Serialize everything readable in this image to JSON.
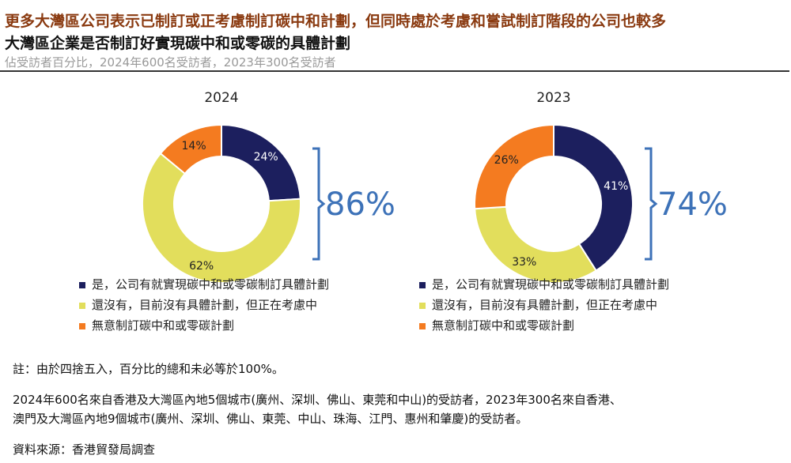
{
  "header": {
    "title": "更多大灣區公司表示已制訂或正考慮制訂碳中和計劃，但同時處於考慮和嘗試制訂階段的公司也較多",
    "subtitle": "大灣區企業是否制訂好實現碳中和或零碳的具體計劃",
    "note": "佔受訪者百分比，2024年600名受訪者，2023年300名受訪者"
  },
  "colors": {
    "yes": "#1c1f5e",
    "considering": "#e2de5c",
    "no": "#f47b20",
    "bracket": "#3d72b8"
  },
  "chart_data": [
    {
      "type": "pie",
      "title": "2024",
      "categories": [
        "是，公司有就實現碳中和或零碳制訂具體計劃",
        "還沒有，目前沒有具體計劃，但正在考慮中",
        "無意制訂碳中和或零碳計劃"
      ],
      "values": [
        24,
        62,
        14
      ],
      "labels": [
        "24%",
        "62%",
        "14%"
      ],
      "bracket_total": "86%"
    },
    {
      "type": "pie",
      "title": "2023",
      "categories": [
        "是，公司有就實現碳中和或零碳制訂具體計劃",
        "還沒有，目前沒有具體計劃，但正在考慮中",
        "無意制訂碳中和或零碳計劃"
      ],
      "values": [
        41,
        33,
        26
      ],
      "labels": [
        "41%",
        "33%",
        "26%"
      ],
      "bracket_total": "74%"
    }
  ],
  "footer": {
    "note": "註：由於四捨五入，百分比的總和未必等於100%。",
    "line1": "2024年600名來自香港及大灣區內地5個城市(廣州、深圳、佛山、東莞和中山)的受訪者，2023年300名來自香港、",
    "line2": "澳門及大灣區內地9個城市(廣州、深圳、佛山、東莞、中山、珠海、江門、惠州和肇慶)的受訪者。",
    "source": "資料來源：香港貿發局調查"
  }
}
